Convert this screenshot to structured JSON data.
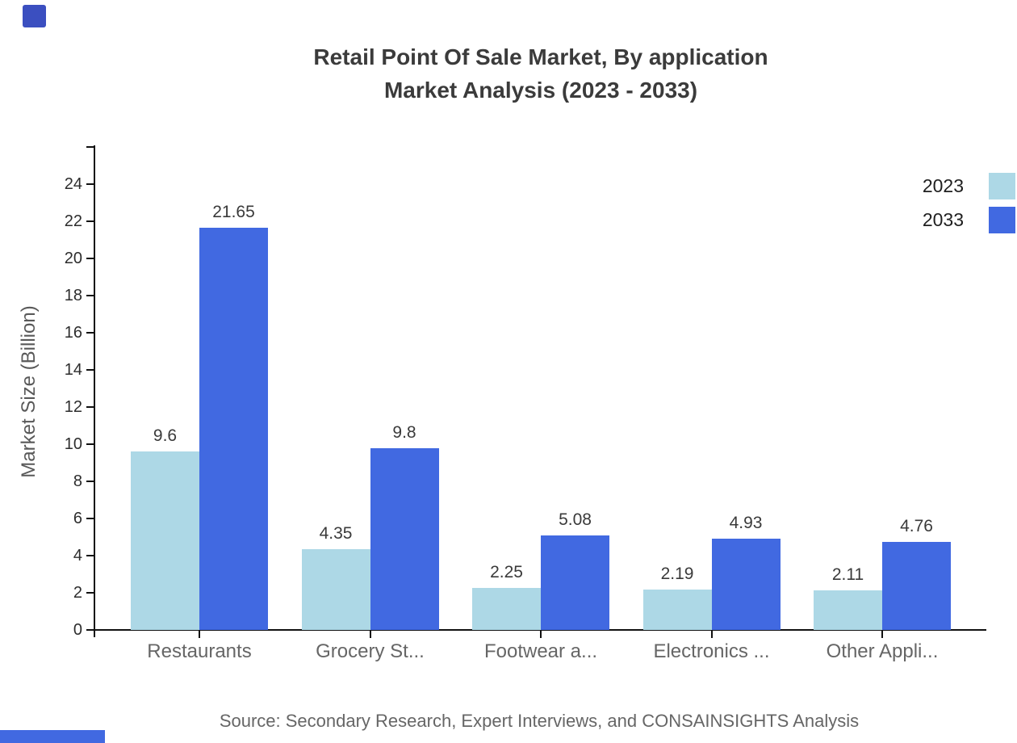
{
  "title": {
    "line1": "Retail Point Of Sale Market, By application",
    "line2": "Market Analysis (2023 - 2033)"
  },
  "chart_data": {
    "type": "bar",
    "title": "Retail Point Of Sale Market, By application Market Analysis (2023 - 2033)",
    "categories": [
      "Restaurants",
      "Grocery St...",
      "Footwear a...",
      "Electronics ...",
      "Other Appli..."
    ],
    "series": [
      {
        "name": "2023",
        "color": "#ADD8E6",
        "values": [
          9.6,
          4.35,
          2.25,
          2.19,
          2.11
        ]
      },
      {
        "name": "2033",
        "color": "#4169E1",
        "values": [
          21.65,
          9.8,
          5.08,
          4.93,
          4.76
        ]
      }
    ],
    "xlabel": "",
    "ylabel": "Market Size (Billion)",
    "ylim": [
      0,
      26
    ],
    "ytick_step": 2,
    "ytick_label_max": 24,
    "grid": false,
    "value_labels": true,
    "legend_position": "top-right"
  },
  "source": "Source: Secondary Research, Expert Interviews, and CONSAINSIGHTS Analysis",
  "colors": {
    "series_2023": "#ADD8E6",
    "series_2033": "#4169E1",
    "axis": "#111111",
    "title_text": "#3b3b3b",
    "category_text": "#666666",
    "tick_text": "#2d2d2d",
    "value_text": "#3a3a3a",
    "source_text": "#666666",
    "brand_mark": "#3b4fc0",
    "brand_strip": "#4169e1"
  }
}
